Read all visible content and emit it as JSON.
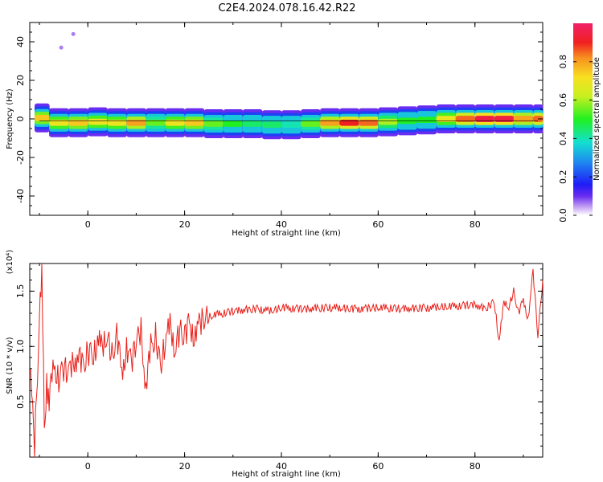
{
  "title": "C2E4.2024.078.16.42.R22",
  "chart_data": [
    {
      "type": "heatmap",
      "xlabel": "Height of straight line (km)",
      "ylabel": "Frequency (Hz)",
      "xlim": [
        -12,
        94
      ],
      "ylim": [
        -50,
        50
      ],
      "xticks": [
        "0",
        "20",
        "40",
        "60",
        "80"
      ],
      "yticks": [
        "-40",
        "-20",
        "0",
        "20",
        "40"
      ],
      "colorbar": {
        "label": "Normalized spectral amplitude",
        "range": [
          0,
          1
        ],
        "ticks": [
          "0.0",
          "0.2",
          "0.4",
          "0.6",
          "0.8"
        ]
      },
      "ridge": [
        {
          "x": -11,
          "f": 0.5,
          "a": 0.75
        },
        {
          "x": -8,
          "f": -2,
          "a": 0.7
        },
        {
          "x": -4,
          "f": -2,
          "a": 0.75
        },
        {
          "x": 0,
          "f": -1.5,
          "a": 0.7
        },
        {
          "x": 4,
          "f": -2,
          "a": 0.7
        },
        {
          "x": 8,
          "f": -2,
          "a": 0.8
        },
        {
          "x": 12,
          "f": -2,
          "a": 0.55
        },
        {
          "x": 16,
          "f": -2,
          "a": 0.7
        },
        {
          "x": 20,
          "f": -2,
          "a": 0.75
        },
        {
          "x": 24,
          "f": -2.5,
          "a": 0.55
        },
        {
          "x": 28,
          "f": -2.5,
          "a": 0.5
        },
        {
          "x": 32,
          "f": -2.5,
          "a": 0.45
        },
        {
          "x": 36,
          "f": -3,
          "a": 0.45
        },
        {
          "x": 40,
          "f": -3,
          "a": 0.4
        },
        {
          "x": 44,
          "f": -2.5,
          "a": 0.55
        },
        {
          "x": 48,
          "f": -2,
          "a": 0.8
        },
        {
          "x": 52,
          "f": -2,
          "a": 0.9
        },
        {
          "x": 56,
          "f": -2,
          "a": 0.85
        },
        {
          "x": 60,
          "f": -1.5,
          "a": 0.6
        },
        {
          "x": 64,
          "f": -1,
          "a": 0.5
        },
        {
          "x": 68,
          "f": -0.5,
          "a": 0.5
        },
        {
          "x": 72,
          "f": 0,
          "a": 0.7
        },
        {
          "x": 76,
          "f": 0,
          "a": 0.85
        },
        {
          "x": 80,
          "f": 0,
          "a": 0.95
        },
        {
          "x": 84,
          "f": 0,
          "a": 0.95
        },
        {
          "x": 88,
          "f": 0,
          "a": 0.8
        },
        {
          "x": 92,
          "f": 0,
          "a": 0.85
        }
      ],
      "outliers": [
        {
          "x": -5.5,
          "f": 37
        },
        {
          "x": -3,
          "f": 44
        }
      ]
    },
    {
      "type": "line",
      "xlabel": "Height of straight line (km)",
      "ylabel": "SNR (10 * v/v)",
      "multiplier": "(x10⁴)",
      "xlim": [
        -12,
        94
      ],
      "ylim": [
        0,
        1.75
      ],
      "xticks": [
        "0",
        "20",
        "40",
        "60",
        "80"
      ],
      "yticks": [
        "0.5",
        "1.0",
        "1.5"
      ],
      "color": "#e8201a",
      "series": [
        {
          "x": [
            -12,
            -11,
            -10,
            -9.5,
            -9,
            -8.5,
            -8,
            -7,
            -6,
            -5,
            -4,
            -3,
            -2,
            -1,
            0,
            1,
            2,
            3,
            4,
            5,
            6,
            7,
            8,
            9,
            10,
            11,
            12,
            13,
            14,
            15,
            16,
            17,
            18,
            19,
            20,
            21,
            22,
            23,
            24,
            26,
            28,
            30,
            32,
            35,
            38,
            40,
            45,
            50,
            55,
            60,
            65,
            70,
            75,
            80,
            82,
            84,
            85,
            86,
            87,
            88,
            89,
            90,
            91,
            92,
            93,
            94
          ],
          "y": [
            0.85,
            0.1,
            1.2,
            1.72,
            0.3,
            0.65,
            0.5,
            0.85,
            0.7,
            0.8,
            0.78,
            0.86,
            0.9,
            0.84,
            0.95,
            0.9,
            1.05,
            1.0,
            1.08,
            0.92,
            1.1,
            0.75,
            1.0,
            0.85,
            1.05,
            1.15,
            0.6,
            1.0,
            1.1,
            0.8,
            1.05,
            1.2,
            0.95,
            1.15,
            1.1,
            1.2,
            1.1,
            1.2,
            1.25,
            1.28,
            1.3,
            1.32,
            1.33,
            1.34,
            1.32,
            1.35,
            1.34,
            1.35,
            1.34,
            1.35,
            1.34,
            1.35,
            1.36,
            1.38,
            1.34,
            1.4,
            1.05,
            1.4,
            1.35,
            1.5,
            1.3,
            1.42,
            1.25,
            1.68,
            1.1,
            1.6
          ]
        }
      ]
    }
  ]
}
